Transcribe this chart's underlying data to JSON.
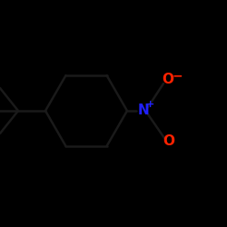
{
  "background_color": "#000000",
  "bond_color": "#1a1a1a",
  "N_color": "#2020ff",
  "O_color": "#ff2200",
  "bond_width": 1.8,
  "figsize": [
    2.5,
    2.5
  ],
  "dpi": 100,
  "N_label": "N",
  "N_charge_label": "+",
  "O_top_label": "O",
  "O_top_charge": "−",
  "O_bot_label": "O",
  "font_size_atom": 11,
  "font_size_charge": 8
}
